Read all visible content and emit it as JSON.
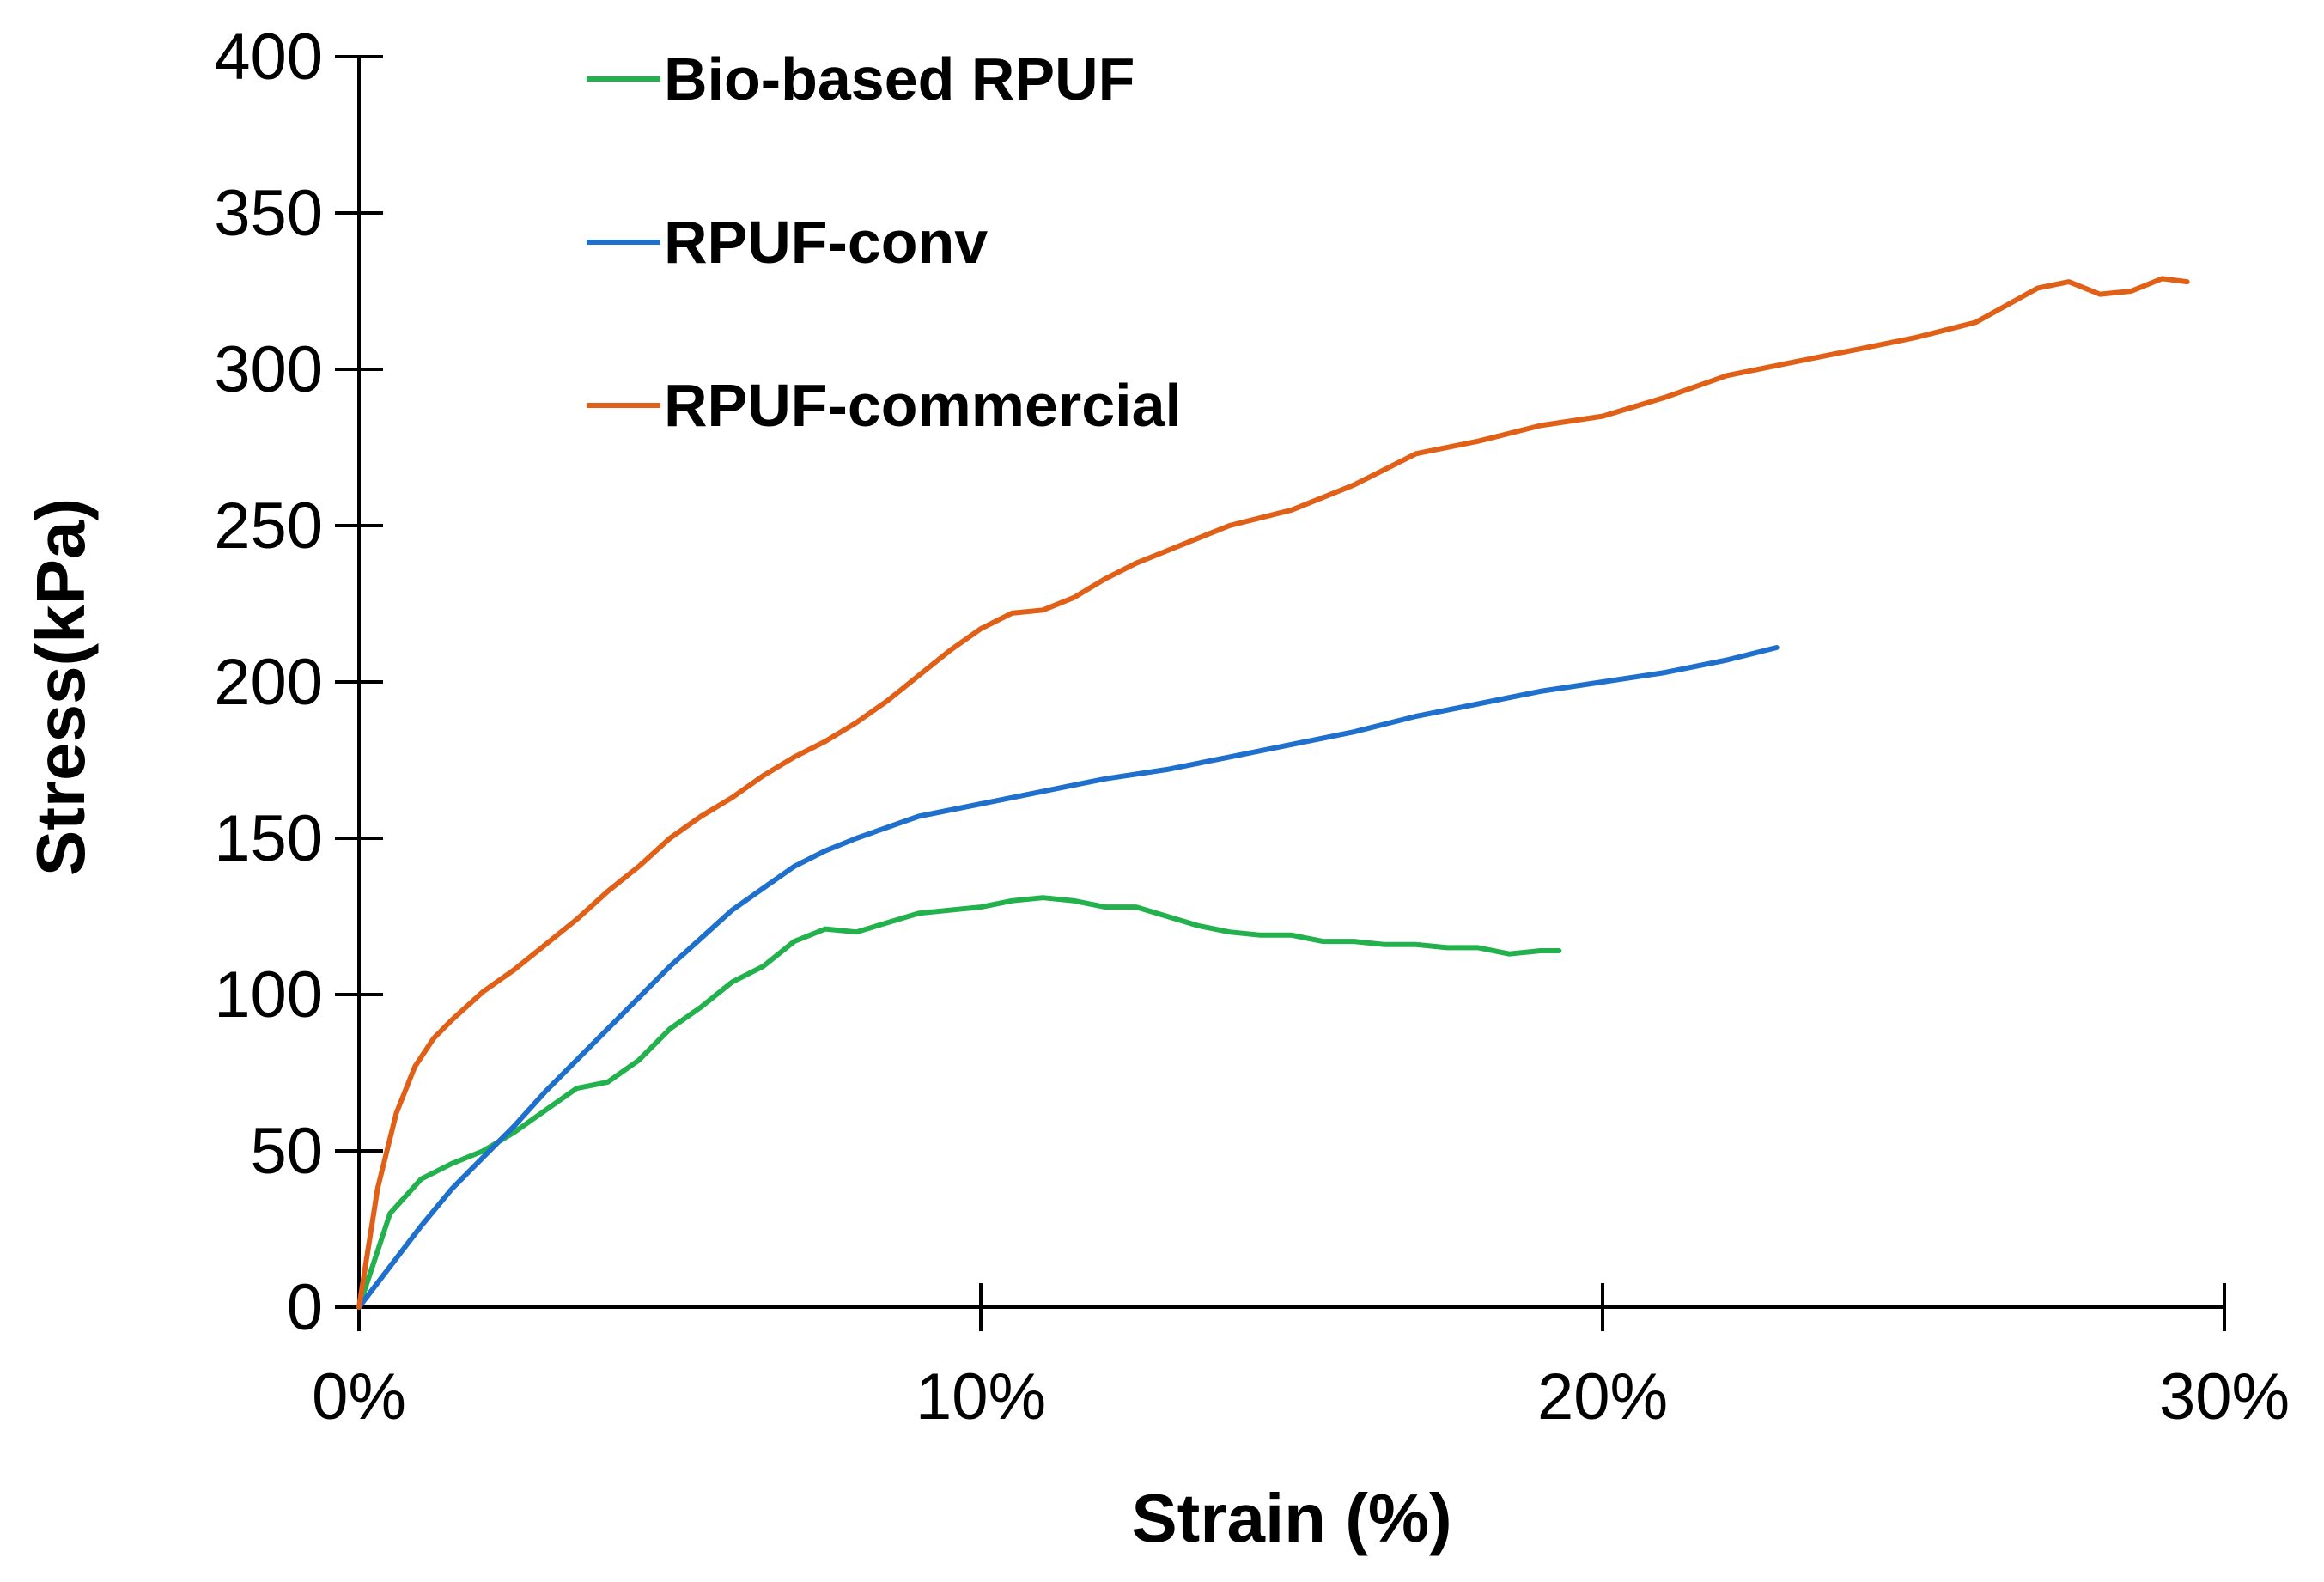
{
  "chart_data": {
    "type": "line",
    "title": "",
    "xlabel": "Strain (%)",
    "ylabel": "Stress(kPa)",
    "xlim": [
      0,
      30
    ],
    "ylim": [
      0,
      400
    ],
    "x_ticks": [
      0,
      10,
      20,
      30
    ],
    "x_tick_labels": [
      "0%",
      "10%",
      "20%",
      "30%"
    ],
    "y_ticks": [
      0,
      50,
      100,
      150,
      200,
      250,
      300,
      350,
      400
    ],
    "y_tick_labels": [
      "0",
      "50",
      "100",
      "150",
      "200",
      "250",
      "300",
      "350",
      "400"
    ],
    "grid": false,
    "legend_position": "top-left",
    "series": [
      {
        "name": "Bio-based RPUF",
        "color": "#22b14c",
        "x": [
          0,
          0.5,
          1,
          1.5,
          2,
          2.5,
          3,
          3.5,
          4,
          4.5,
          5,
          5.5,
          6,
          6.5,
          7,
          7.5,
          8,
          8.5,
          9,
          9.5,
          10,
          10.5,
          11,
          11.5,
          12,
          12.5,
          13,
          13.5,
          14,
          14.5,
          15,
          15.5,
          16,
          16.5,
          17,
          17.5,
          18,
          18.5,
          19,
          19.3
        ],
        "y": [
          0,
          30,
          41,
          46,
          50,
          56,
          63,
          70,
          72,
          79,
          89,
          96,
          104,
          109,
          117,
          121,
          120,
          123,
          126,
          127,
          128,
          130,
          131,
          130,
          128,
          128,
          125,
          122,
          120,
          119,
          119,
          117,
          117,
          116,
          116,
          115,
          115,
          113,
          114,
          114
        ]
      },
      {
        "name": "RPUF-conv",
        "color": "#1f6fcc",
        "x": [
          0,
          0.5,
          1,
          1.5,
          2,
          2.5,
          3,
          3.5,
          4,
          4.5,
          5,
          5.5,
          6,
          6.5,
          7,
          7.5,
          8,
          9,
          10,
          11,
          12,
          13,
          14,
          15,
          16,
          17,
          18,
          19,
          20,
          21,
          22,
          22.8
        ],
        "y": [
          0,
          13,
          26,
          38,
          48,
          58,
          69,
          79,
          89,
          99,
          109,
          118,
          127,
          134,
          141,
          146,
          150,
          157,
          161,
          165,
          169,
          172,
          176,
          180,
          184,
          189,
          193,
          197,
          200,
          203,
          207,
          211
        ]
      },
      {
        "name": "RPUF-commercial",
        "color": "#e06018",
        "x": [
          0,
          0.3,
          0.6,
          0.9,
          1.2,
          1.5,
          2,
          2.5,
          3,
          3.5,
          4,
          4.5,
          5,
          5.5,
          6,
          6.5,
          7,
          7.5,
          8,
          8.5,
          9,
          9.5,
          10,
          10.5,
          11,
          11.5,
          12,
          12.5,
          13,
          14,
          15,
          16,
          17,
          18,
          19,
          20,
          21,
          22,
          23,
          24,
          25,
          26,
          27,
          27.5,
          28,
          28.5,
          29,
          29.4
        ],
        "y": [
          0,
          38,
          62,
          77,
          86,
          92,
          101,
          108,
          116,
          124,
          133,
          141,
          150,
          157,
          163,
          170,
          176,
          181,
          187,
          194,
          202,
          210,
          217,
          222,
          223,
          227,
          233,
          238,
          242,
          250,
          255,
          263,
          273,
          277,
          282,
          285,
          291,
          298,
          302,
          306,
          310,
          315,
          326,
          328,
          324,
          325,
          329,
          328
        ]
      }
    ]
  }
}
